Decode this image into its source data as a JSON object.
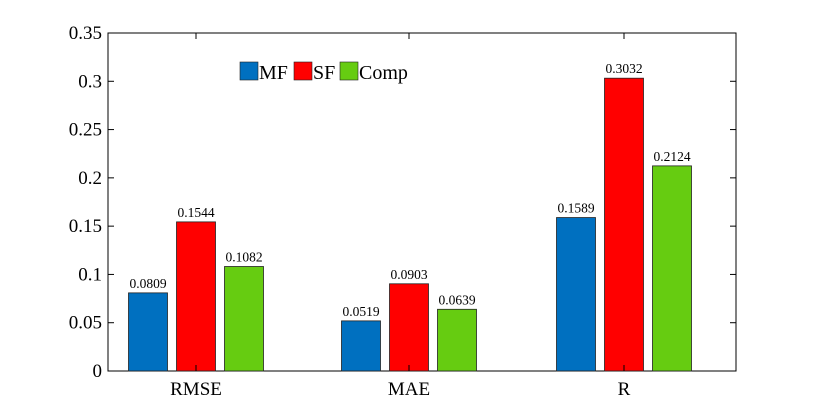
{
  "chart_data": {
    "type": "bar",
    "categories": [
      "RMSE",
      "MAE",
      "R"
    ],
    "series": [
      {
        "name": "MF",
        "color": "#0070c0",
        "values": [
          0.0809,
          0.0519,
          0.1589
        ],
        "labels": [
          "0.0809",
          "0.0519",
          "0.1589"
        ]
      },
      {
        "name": "SF",
        "color": "#ff0000",
        "values": [
          0.1544,
          0.0903,
          0.3032
        ],
        "labels": [
          "0.1544",
          "0.0903",
          "0.3032"
        ]
      },
      {
        "name": "Comp",
        "color": "#66cc11",
        "values": [
          0.1082,
          0.0639,
          0.2124
        ],
        "labels": [
          "0.1082",
          "0.0639",
          "0.2124"
        ]
      }
    ],
    "ylim": [
      0,
      0.35
    ],
    "yticks": [
      "0",
      "0.05",
      "0.1",
      "0.15",
      "0.2",
      "0.25",
      "0.3",
      "0.35"
    ],
    "title": "",
    "xlabel": "",
    "ylabel": "",
    "legend_position": "top-left",
    "grid": false
  }
}
